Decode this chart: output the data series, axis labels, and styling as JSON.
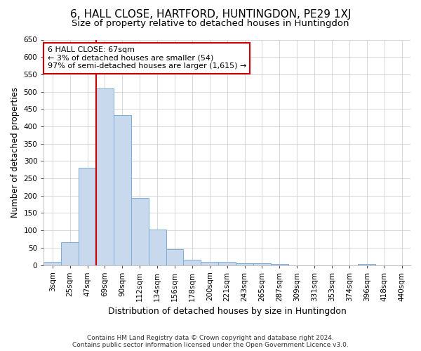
{
  "title": "6, HALL CLOSE, HARTFORD, HUNTINGDON, PE29 1XJ",
  "subtitle": "Size of property relative to detached houses in Huntingdon",
  "xlabel": "Distribution of detached houses by size in Huntingdon",
  "ylabel": "Number of detached properties",
  "footer_line1": "Contains HM Land Registry data © Crown copyright and database right 2024.",
  "footer_line2": "Contains public sector information licensed under the Open Government Licence v3.0.",
  "categories": [
    "3sqm",
    "25sqm",
    "47sqm",
    "69sqm",
    "90sqm",
    "112sqm",
    "134sqm",
    "156sqm",
    "178sqm",
    "200sqm",
    "221sqm",
    "243sqm",
    "265sqm",
    "287sqm",
    "309sqm",
    "331sqm",
    "353sqm",
    "374sqm",
    "396sqm",
    "418sqm",
    "440sqm"
  ],
  "values": [
    10,
    65,
    280,
    510,
    432,
    193,
    102,
    46,
    16,
    10,
    10,
    5,
    5,
    4,
    0,
    0,
    0,
    0,
    4,
    0,
    0
  ],
  "bar_color": "#c8d9ee",
  "bar_edge_color": "#7aadd4",
  "red_line_x": 3,
  "annotation_text_line1": "6 HALL CLOSE: 67sqm",
  "annotation_text_line2": "← 3% of detached houses are smaller (54)",
  "annotation_text_line3": "97% of semi-detached houses are larger (1,615) →",
  "annotation_box_color": "#ffffff",
  "annotation_box_edge_color": "#cc0000",
  "ylim": [
    0,
    650
  ],
  "yticks": [
    0,
    50,
    100,
    150,
    200,
    250,
    300,
    350,
    400,
    450,
    500,
    550,
    600,
    650
  ],
  "title_fontsize": 11,
  "subtitle_fontsize": 9.5,
  "xlabel_fontsize": 9,
  "ylabel_fontsize": 8.5,
  "tick_fontsize": 7.5,
  "annotation_fontsize": 8,
  "footer_fontsize": 6.5,
  "background_color": "#ffffff",
  "grid_color": "#c8c8c8"
}
